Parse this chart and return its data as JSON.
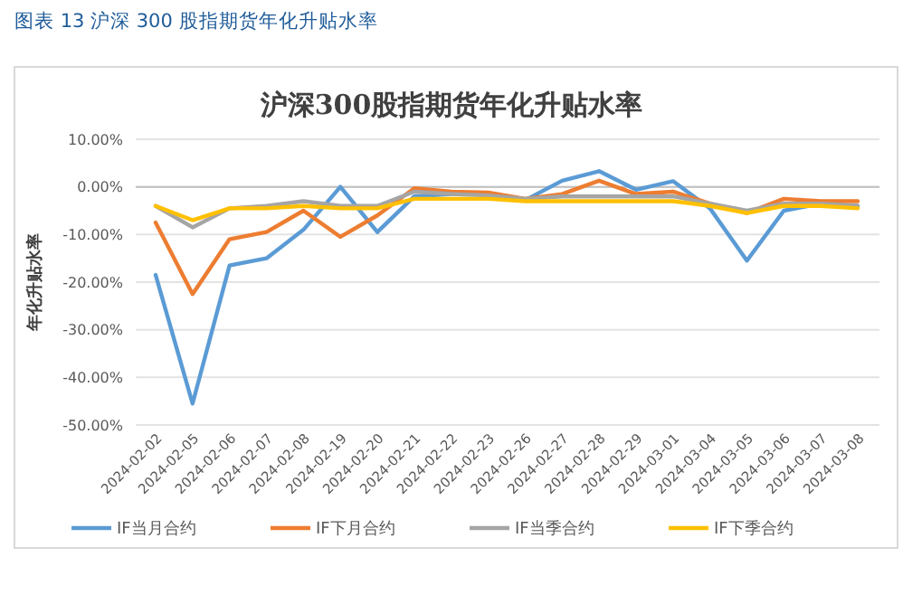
{
  "chart_data": {
    "type": "line",
    "title": "沪深300股指期货年化升贴水率",
    "subtitle": "图表 13  沪深 300 股指期货年化升贴水率",
    "ylabel": "年化升贴水率",
    "categories": [
      "2024-02-02",
      "2024-02-05",
      "2024-02-06",
      "2024-02-07",
      "2024-02-08",
      "2024-02-19",
      "2024-02-20",
      "2024-02-21",
      "2024-02-22",
      "2024-02-23",
      "2024-02-26",
      "2024-02-27",
      "2024-02-28",
      "2024-02-29",
      "2024-03-01",
      "2024-03-04",
      "2024-03-05",
      "2024-03-06",
      "2024-03-07",
      "2024-03-08"
    ],
    "series": [
      {
        "name": "IF当月合约",
        "color": "#5b9bd5",
        "values": [
          -18.5,
          -45.5,
          -16.5,
          -15,
          -9,
          0,
          -9.5,
          -2,
          -1.5,
          -1.5,
          -2.8,
          1.3,
          3.3,
          -0.6,
          1.2,
          -4.5,
          -15.5,
          -5,
          -3.5,
          -4
        ]
      },
      {
        "name": "IF下月合约",
        "color": "#ed7d31",
        "values": [
          -7.5,
          -22.5,
          -11,
          -9.5,
          -5,
          -10.5,
          -6,
          -0.3,
          -1,
          -1.2,
          -2.5,
          -1.5,
          1.3,
          -1.5,
          -1,
          -3.5,
          -5.5,
          -2.5,
          -3,
          -3
        ]
      },
      {
        "name": "IF当季合约",
        "color": "#a5a5a5",
        "values": [
          -4,
          -8.5,
          -4.5,
          -4,
          -3,
          -4,
          -4,
          -1,
          -1.5,
          -1.8,
          -2.5,
          -2,
          -2,
          -2,
          -2,
          -3.5,
          -5,
          -3.5,
          -3.5,
          -4
        ]
      },
      {
        "name": "IF下季合约",
        "color": "#ffc000",
        "values": [
          -4,
          -7,
          -4.5,
          -4.5,
          -4,
          -4.5,
          -4.5,
          -2.5,
          -2.5,
          -2.5,
          -3,
          -3,
          -3,
          -3,
          -3,
          -4,
          -5.5,
          -4,
          -4,
          -4.5
        ]
      }
    ],
    "ylim": [
      -50,
      10
    ],
    "yticks": [
      {
        "value": 10,
        "label": "10.00%"
      },
      {
        "value": 0,
        "label": "0.00%"
      },
      {
        "value": -10,
        "label": "-10.00%"
      },
      {
        "value": -20,
        "label": "-20.00%"
      },
      {
        "value": -30,
        "label": "-30.00%"
      },
      {
        "value": -40,
        "label": "-40.00%"
      },
      {
        "value": -50,
        "label": "-50.00%"
      }
    ],
    "grid": "y",
    "legend": "bottom",
    "line_style": "solid",
    "marker": "none"
  }
}
